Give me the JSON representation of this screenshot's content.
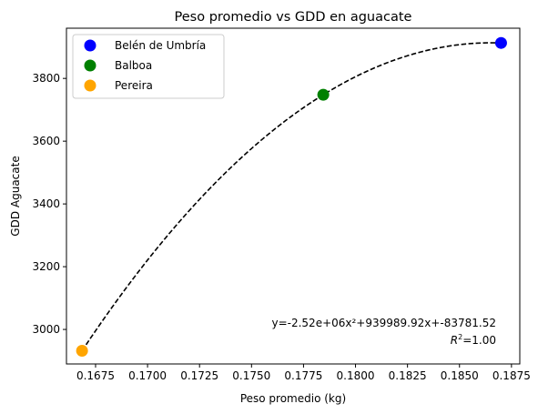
{
  "chart_data": {
    "type": "scatter",
    "title": "Peso promedio vs GDD en aguacate",
    "xlabel": "Peso promedio (kg)",
    "ylabel": "GDD Aguacate",
    "xlim": [
      0.1661,
      0.1879
    ],
    "ylim": [
      2890,
      3960
    ],
    "xticks": [
      0.1675,
      0.17,
      0.1725,
      0.175,
      0.1775,
      0.18,
      0.1825,
      0.185,
      0.1875
    ],
    "xtick_labels": [
      "0.1675",
      "0.1700",
      "0.1725",
      "0.1750",
      "0.1775",
      "0.1800",
      "0.1825",
      "0.1850",
      "0.1875"
    ],
    "yticks": [
      3000,
      3200,
      3400,
      3600,
      3800
    ],
    "ytick_labels": [
      "3000",
      "3200",
      "3400",
      "3600",
      "3800"
    ],
    "grid": false,
    "legend_position": "top-left",
    "series": [
      {
        "name": "Belén de Umbría",
        "color": "#0000ff",
        "points": [
          {
            "x": 0.187,
            "y": 3913
          }
        ]
      },
      {
        "name": "Balboa",
        "color": "#008000",
        "points": [
          {
            "x": 0.17845,
            "y": 3748
          }
        ]
      },
      {
        "name": "Pereira",
        "color": "#ffa500",
        "points": [
          {
            "x": 0.16685,
            "y": 2932
          }
        ]
      }
    ],
    "fit": {
      "type": "polynomial-2",
      "style": "dashed",
      "color": "#000000",
      "x_range": [
        0.16685,
        0.187
      ],
      "through": [
        [
          0.16685,
          2932
        ],
        [
          0.17845,
          3748
        ],
        [
          0.187,
          3913
        ]
      ]
    },
    "annotations": {
      "equation": "y=-2.52e+06x²+939989.92x+-83781.52",
      "r2_prefix": "R",
      "r2_exp": "2",
      "r2_suffix": "=1.00"
    }
  }
}
